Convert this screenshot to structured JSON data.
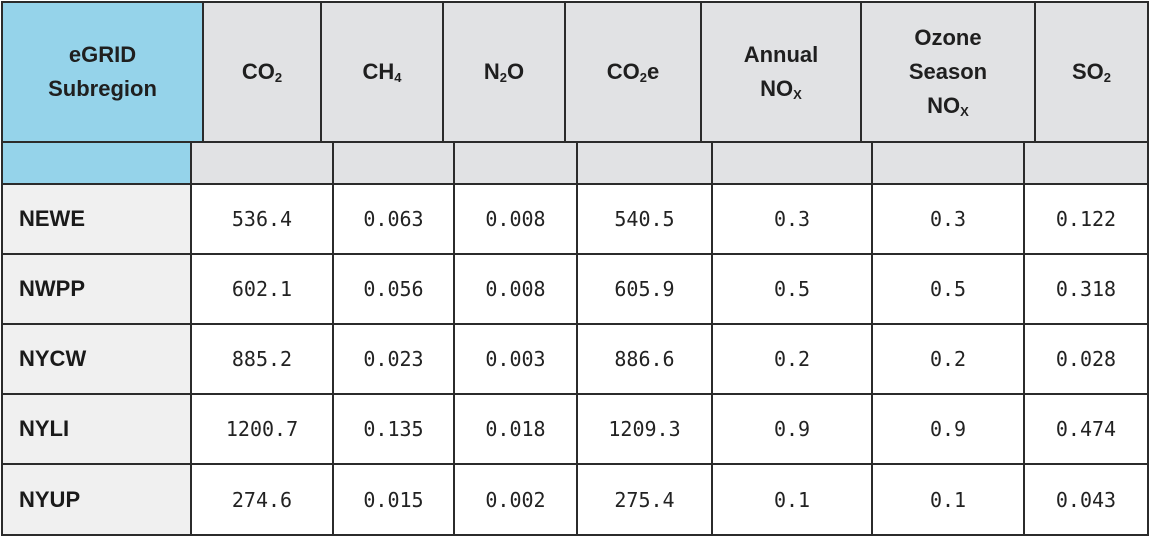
{
  "table": {
    "columns": [
      {
        "id": "subregion",
        "lines": [
          [
            "eGRID",
            ""
          ],
          [
            "Subregion",
            ""
          ]
        ]
      },
      {
        "id": "co2",
        "lines": [
          [
            "CO",
            "2"
          ]
        ]
      },
      {
        "id": "ch4",
        "lines": [
          [
            "CH",
            "4"
          ]
        ]
      },
      {
        "id": "n2o",
        "lines": [
          [
            "N",
            "2",
            "O"
          ]
        ]
      },
      {
        "id": "co2e",
        "lines": [
          [
            "CO",
            "2",
            "e"
          ]
        ]
      },
      {
        "id": "annual-nox",
        "lines": [
          [
            "Annual",
            ""
          ],
          [
            "NO",
            "X"
          ]
        ]
      },
      {
        "id": "ozone-season-nox",
        "lines": [
          [
            "Ozone",
            ""
          ],
          [
            "Season",
            ""
          ],
          [
            "NO",
            "X"
          ]
        ]
      },
      {
        "id": "so2",
        "lines": [
          [
            "SO",
            "2"
          ]
        ]
      }
    ],
    "rows": [
      {
        "region": "NEWE",
        "values": [
          "536.4",
          "0.063",
          "0.008",
          "540.5",
          "0.3",
          "0.3",
          "0.122"
        ]
      },
      {
        "region": "NWPP",
        "values": [
          "602.1",
          "0.056",
          "0.008",
          "605.9",
          "0.5",
          "0.5",
          "0.318"
        ]
      },
      {
        "region": "NYCW",
        "values": [
          "885.2",
          "0.023",
          "0.003",
          "886.6",
          "0.2",
          "0.2",
          "0.028"
        ]
      },
      {
        "region": "NYLI",
        "values": [
          "1200.7",
          "0.135",
          "0.018",
          "1209.3",
          "0.9",
          "0.9",
          "0.474"
        ]
      },
      {
        "region": "NYUP",
        "values": [
          "274.6",
          "0.015",
          "0.002",
          "275.4",
          "0.1",
          "0.1",
          "0.043"
        ]
      }
    ]
  },
  "colors": {
    "header_first": "#95d3ea",
    "header": "#e1e2e4",
    "row_label": "#f0f0f0",
    "border": "#2b2b2b"
  }
}
